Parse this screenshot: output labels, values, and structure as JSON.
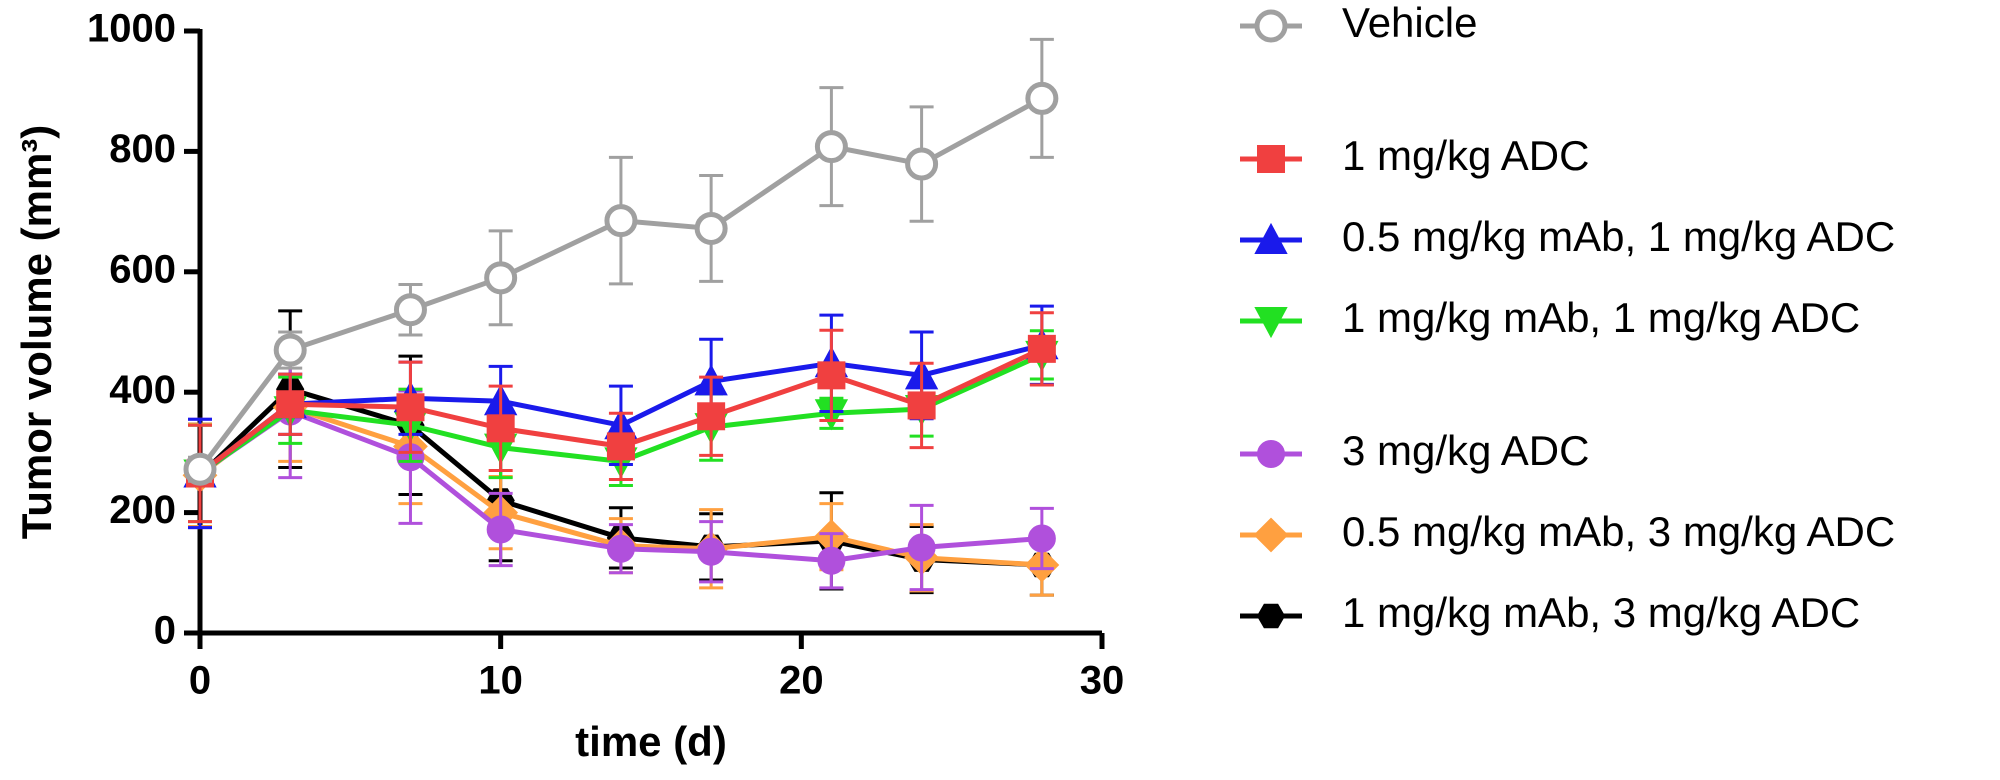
{
  "chart_data": {
    "type": "line",
    "x_label": "time (d)",
    "y_label": "Tumor volume (mm³)",
    "x": [
      0,
      3,
      7,
      10,
      14,
      17,
      21,
      24,
      28
    ],
    "xlim": [
      0,
      30
    ],
    "xticks": [
      0,
      10,
      20,
      30
    ],
    "ylim": [
      0,
      1000
    ],
    "yticks": [
      0,
      200,
      400,
      600,
      800,
      1000
    ],
    "series": [
      {
        "name": "Vehicle",
        "color": "#a0a0a0",
        "marker": "open-circle",
        "values": [
          272,
          470,
          537,
          590,
          685,
          672,
          808,
          779,
          888
        ],
        "errors": [
          20,
          30,
          42,
          78,
          105,
          88,
          98,
          95,
          98
        ]
      },
      {
        "name": "1 mg/kg ADC",
        "color": "#f04040",
        "marker": "square",
        "values": [
          265,
          380,
          375,
          340,
          310,
          360,
          428,
          378,
          472
        ],
        "errors": [
          80,
          50,
          75,
          70,
          55,
          65,
          75,
          70,
          60
        ]
      },
      {
        "name": "0.5 mg/kg mAb, 1 mg/kg ADC",
        "color": "#1a1aeb",
        "marker": "triangle-up",
        "values": [
          265,
          380,
          390,
          385,
          345,
          418,
          448,
          428,
          478
        ],
        "errors": [
          90,
          50,
          60,
          58,
          65,
          70,
          80,
          72,
          65
        ]
      },
      {
        "name": "1 mg/kg mAb, 1 mg/kg ADC",
        "color": "#22e022",
        "marker": "triangle-down",
        "values": [
          265,
          370,
          345,
          308,
          285,
          342,
          365,
          372,
          462
        ],
        "errors": [
          80,
          55,
          60,
          50,
          40,
          55,
          25,
          45,
          40
        ]
      },
      {
        "name": "3 mg/kg ADC",
        "color": "#b050dc",
        "marker": "circle",
        "values": [
          265,
          368,
          292,
          172,
          140,
          135,
          120,
          142,
          157
        ],
        "errors": [
          90,
          110,
          110,
          60,
          40,
          50,
          45,
          70,
          50
        ]
      },
      {
        "name": "0.5 mg/kg mAb, 3 mg/kg ADC",
        "color": "#ffa040",
        "marker": "diamond",
        "values": [
          262,
          375,
          310,
          200,
          145,
          140,
          160,
          125,
          113
        ],
        "errors": [
          85,
          90,
          95,
          60,
          45,
          65,
          55,
          55,
          50
        ]
      },
      {
        "name": "1 mg/kg mAb, 3 mg/kg ADC",
        "color": "#000000",
        "marker": "hexagon",
        "values": [
          262,
          405,
          345,
          220,
          158,
          143,
          153,
          122,
          113
        ],
        "errors": [
          85,
          130,
          115,
          100,
          50,
          55,
          80,
          55,
          50
        ]
      }
    ]
  }
}
